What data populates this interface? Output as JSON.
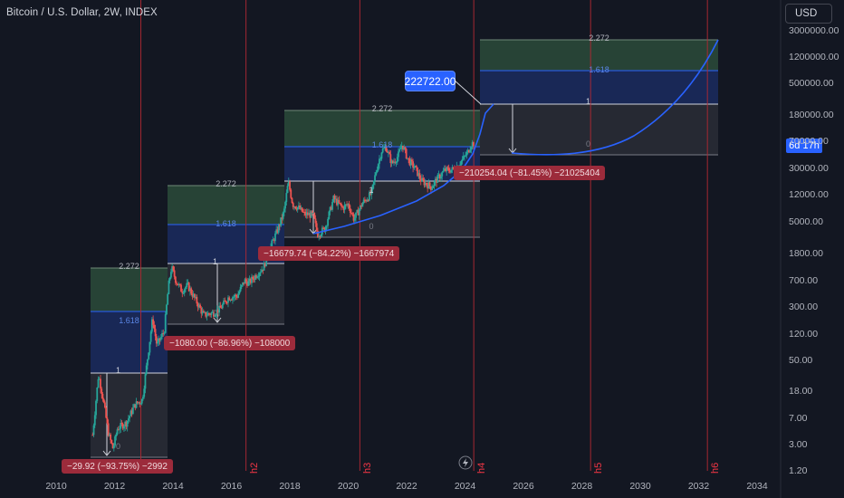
{
  "header": {
    "symbol_title": "Bitcoin / U.S. Dollar, 2W, INDEX",
    "currency_button": "USD"
  },
  "countdown_badge": "6d 17h",
  "price_callout": "222722.00",
  "colors": {
    "background": "#131722",
    "candle_up": "#26a69a",
    "candle_down": "#ef5350",
    "fib_green_zone": "#2b4b3a",
    "fib_blue_zone": "#1b2a5c",
    "fib_grey_zone": "#2a2d36",
    "curve": "#2962ff",
    "halving_line": "#b22833",
    "drop_label_bg": "#9c2b3b"
  },
  "chart_data": {
    "type": "candlestick",
    "title": "Bitcoin / U.S. Dollar, 2W, INDEX",
    "y_scale": "log",
    "ylim": [
      1.2,
      3000000
    ],
    "y_tick_labels": [
      "3000000.00",
      "1200000.00",
      "500000.00",
      "180000.00",
      "70000.00",
      "30000.00",
      "12000.00",
      "5000.00",
      "1800.00",
      "700.00",
      "300.00",
      "120.00",
      "50.00",
      "18.00",
      "7.00",
      "3.00",
      "1.20"
    ],
    "xlim": [
      2010,
      2034
    ],
    "x_tick_labels": [
      "2010",
      "2012",
      "2014",
      "2016",
      "2018",
      "2020",
      "2022",
      "2024",
      "2026",
      "2028",
      "2030",
      "2032",
      "2034"
    ],
    "halving_lines": [
      {
        "label": "",
        "date": 2012.9
      },
      {
        "label": "h2",
        "date": 2016.5
      },
      {
        "label": "h3",
        "date": 2020.4
      },
      {
        "label": "h4",
        "date": 2024.3
      },
      {
        "label": "h5",
        "date": 2028.3
      },
      {
        "label": "h6",
        "date": 2032.3
      }
    ],
    "price_path": [
      [
        2011.25,
        4
      ],
      [
        2011.45,
        30
      ],
      [
        2011.6,
        14
      ],
      [
        2011.8,
        4
      ],
      [
        2011.95,
        2.5
      ],
      [
        2012.1,
        5
      ],
      [
        2012.4,
        6
      ],
      [
        2012.7,
        11
      ],
      [
        2012.95,
        13
      ],
      [
        2013.2,
        90
      ],
      [
        2013.3,
        200
      ],
      [
        2013.45,
        80
      ],
      [
        2013.7,
        130
      ],
      [
        2013.85,
        600
      ],
      [
        2013.95,
        1100
      ],
      [
        2014.1,
        700
      ],
      [
        2014.3,
        500
      ],
      [
        2014.5,
        600
      ],
      [
        2014.8,
        350
      ],
      [
        2015.05,
        220
      ],
      [
        2015.4,
        240
      ],
      [
        2015.6,
        270
      ],
      [
        2015.9,
        400
      ],
      [
        2016.2,
        420
      ],
      [
        2016.45,
        700
      ],
      [
        2016.6,
        650
      ],
      [
        2016.9,
        900
      ],
      [
        2017.1,
        1100
      ],
      [
        2017.4,
        2500
      ],
      [
        2017.6,
        4000
      ],
      [
        2017.8,
        7000
      ],
      [
        2017.95,
        19000
      ],
      [
        2018.1,
        9000
      ],
      [
        2018.3,
        8000
      ],
      [
        2018.5,
        6500
      ],
      [
        2018.8,
        6300
      ],
      [
        2018.95,
        3300
      ],
      [
        2019.2,
        4000
      ],
      [
        2019.5,
        11000
      ],
      [
        2019.8,
        8000
      ],
      [
        2020.0,
        9000
      ],
      [
        2020.2,
        5500
      ],
      [
        2020.5,
        9500
      ],
      [
        2020.8,
        13000
      ],
      [
        2020.95,
        27000
      ],
      [
        2021.15,
        55000
      ],
      [
        2021.3,
        60000
      ],
      [
        2021.5,
        35000
      ],
      [
        2021.7,
        45000
      ],
      [
        2021.85,
        67000
      ],
      [
        2022.05,
        40000
      ],
      [
        2022.3,
        30000
      ],
      [
        2022.5,
        20000
      ],
      [
        2022.85,
        16000
      ],
      [
        2023.0,
        20000
      ],
      [
        2023.3,
        28000
      ],
      [
        2023.6,
        29000
      ],
      [
        2023.8,
        35000
      ],
      [
        2023.95,
        42000
      ],
      [
        2024.1,
        52000
      ],
      [
        2024.2,
        67000
      ],
      [
        2024.3,
        71000
      ]
    ],
    "fib_boxes": [
      {
        "levels_top": "2.272",
        "levels_mid": "1.618",
        "levels_one": "1",
        "levels_zero": "0",
        "drop_label": "−29.92 (−93.75%) −2992"
      },
      {
        "levels_top": "2.272",
        "levels_mid": "1.618",
        "levels_one": "1",
        "levels_zero": "0",
        "drop_label": "−1080.00 (−86.96%) −108000"
      },
      {
        "levels_top": "2.272",
        "levels_mid": "1.618",
        "levels_one": "1",
        "levels_zero": "0",
        "drop_label": "−16679.74 (−84.22%) −1667974"
      },
      {
        "levels_top": "2.272",
        "levels_mid": "1.618",
        "levels_one": "1",
        "levels_zero": "0",
        "drop_label": "−210254.04 (−81.45%) −21025404"
      },
      {
        "levels_top": "2.272",
        "levels_mid": "1.618",
        "levels_one": "1",
        "levels_zero": "0",
        "drop_label": ""
      }
    ]
  }
}
